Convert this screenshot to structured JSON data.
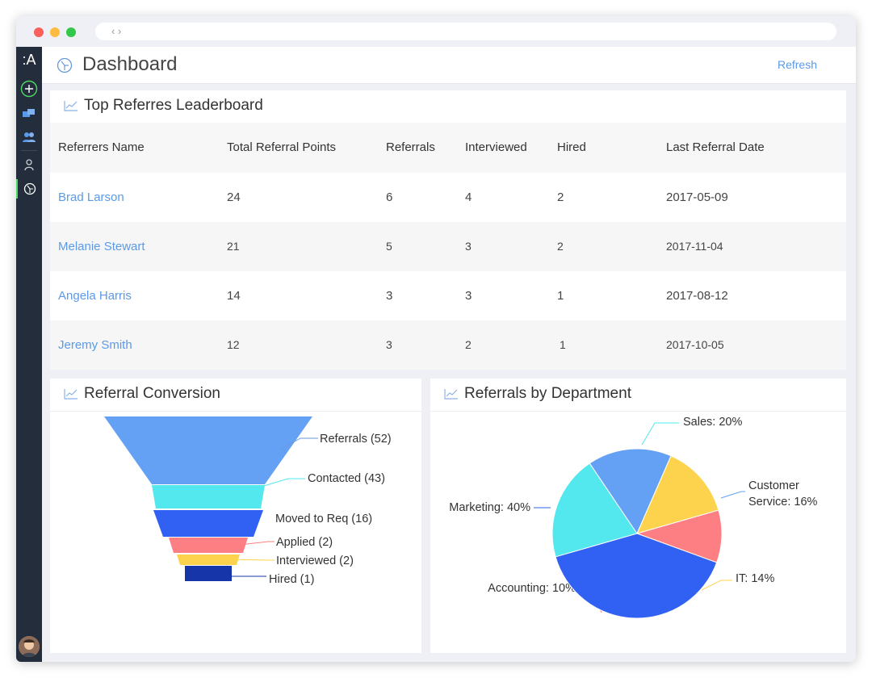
{
  "browser": {
    "nav_glyphs": "‹ ›"
  },
  "sidebar": {
    "logo": ":A"
  },
  "header": {
    "title": "Dashboard",
    "refresh_label": "Refresh"
  },
  "leaderboard": {
    "title": "Top Referres Leaderboard",
    "columns": [
      "Referrers Name",
      "Total Referral Points",
      "Referrals",
      "Interviewed",
      "Hired",
      "Last Referral Date"
    ],
    "rows": [
      {
        "name": "Brad Larson",
        "points": "24",
        "referrals": "6",
        "interviewed": "4",
        "hired": "2",
        "date": "2017-05-09"
      },
      {
        "name": "Melanie Stewart",
        "points": "21",
        "referrals": "5",
        "interviewed": "3",
        "hired": "2",
        "date": "2017-11-04"
      },
      {
        "name": "Angela Harris",
        "points": "14",
        "referrals": "3",
        "interviewed": "3",
        "hired": "1",
        "date": "2017-08-12"
      },
      {
        "name": "Jeremy Smith",
        "points": "12",
        "referrals": "3",
        "interviewed": "2",
        "hired": "1",
        "date": "2017-10-05"
      }
    ]
  },
  "conversion": {
    "title": "Referral Conversion"
  },
  "department": {
    "title": "Referrals by Department"
  },
  "colors": {
    "accent": "#5b9ae8",
    "sidebar": "#232d3c",
    "active": "#4cd964"
  },
  "chart_data": [
    {
      "type": "funnel",
      "title": "Referral Conversion",
      "categories": [
        "Referrals",
        "Contacted",
        "Moved to Req",
        "Applied",
        "Interviewed",
        "Hired"
      ],
      "values": [
        52,
        43,
        16,
        2,
        2,
        1
      ],
      "labels": [
        "Referrals (52)",
        "Contacted (43)",
        "Moved to Req (16)",
        "Applied (2)",
        "Interviewed (2)",
        "Hired (1)"
      ],
      "colors": [
        "#64a0f4",
        "#52e8ee",
        "#3061f2",
        "#fe7f83",
        "#fdd34e",
        "#1535a8"
      ]
    },
    {
      "type": "pie",
      "title": "Referrals by Department",
      "categories": [
        "Sales",
        "Customer Service",
        "IT",
        "Accounting",
        "Marketing"
      ],
      "values": [
        20,
        16,
        14,
        10,
        40
      ],
      "labels": [
        "Sales: 20%",
        "Customer Service: 16%",
        "IT: 14%",
        "Accounting: 10%",
        "Marketing: 40%"
      ],
      "colors": [
        "#52e8ee",
        "#64a0f4",
        "#fdd34e",
        "#fe7f83",
        "#3061f2"
      ]
    }
  ]
}
